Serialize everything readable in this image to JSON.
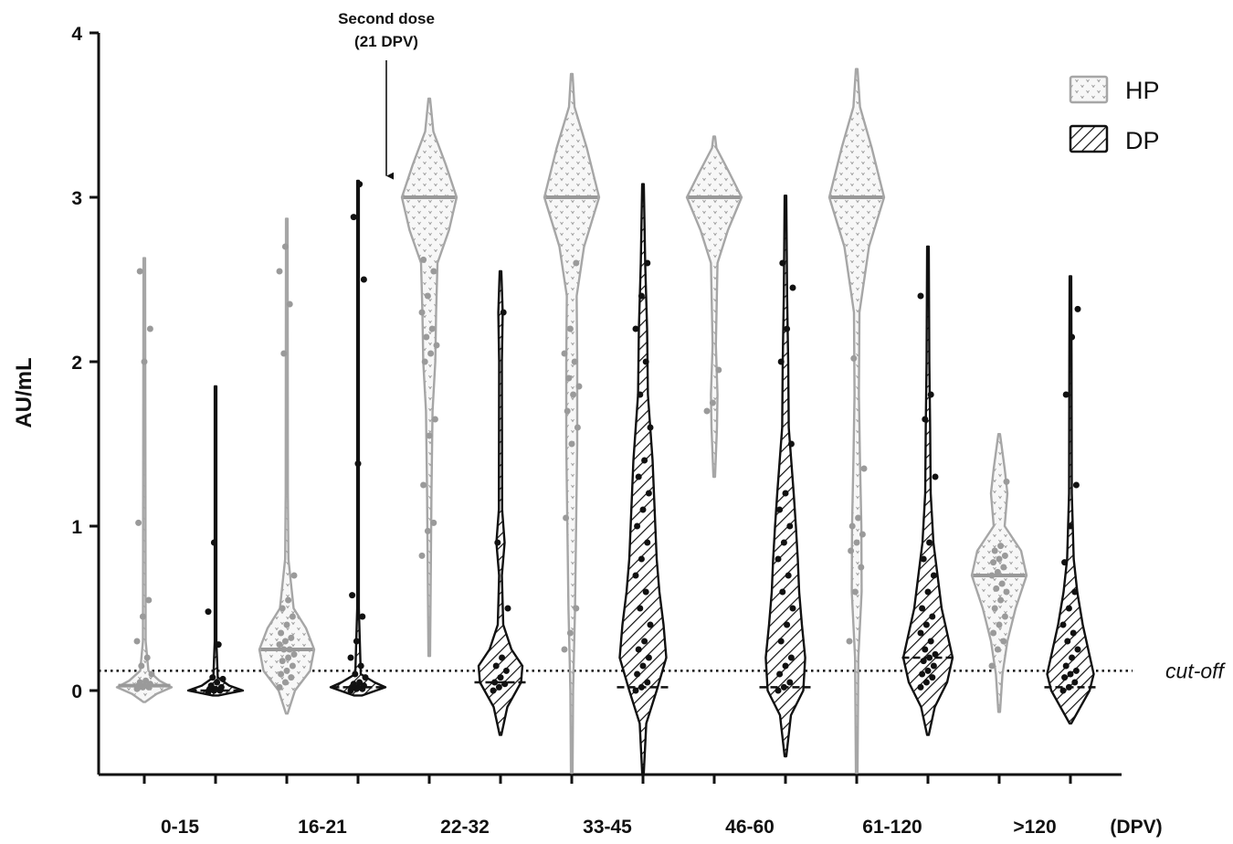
{
  "chart_data": {
    "type": "violin",
    "ylabel": "AU/mL",
    "xunit": "(DPV)",
    "ylim": [
      -0.5,
      4
    ],
    "yticks": [
      0,
      1,
      2,
      3,
      4
    ],
    "categories": [
      "0-15",
      "16-21",
      "22-32",
      "33-45",
      "46-60",
      "61-120",
      ">120"
    ],
    "series": [
      {
        "name": "HP",
        "pattern": "dots",
        "color": "#a6a6a6",
        "violins": [
          {
            "category": "0-15",
            "min": -0.07,
            "max": 2.63,
            "median": 0.03,
            "profile": [
              [
                -0.07,
                0.03
              ],
              [
                -0.02,
                0.45
              ],
              [
                0.02,
                1.0
              ],
              [
                0.06,
                0.55
              ],
              [
                0.12,
                0.15
              ],
              [
                0.3,
                0.05
              ],
              [
                2.63,
                0.02
              ]
            ],
            "points": [
              0.01,
              0.02,
              0.02,
              0.03,
              0.03,
              0.04,
              0.05,
              0.06,
              0.1,
              0.15,
              0.2,
              0.3,
              0.45,
              0.55,
              1.02,
              2.0,
              2.2,
              2.55
            ]
          },
          {
            "category": "16-21",
            "min": -0.14,
            "max": 2.87,
            "median": 0.25,
            "profile": [
              [
                -0.14,
                0.03
              ],
              [
                0.0,
                0.3
              ],
              [
                0.12,
                0.85
              ],
              [
                0.25,
                1.0
              ],
              [
                0.38,
                0.7
              ],
              [
                0.5,
                0.25
              ],
              [
                0.8,
                0.06
              ],
              [
                1.2,
                0.04
              ],
              [
                2.87,
                0.02
              ]
            ],
            "points": [
              0.02,
              0.05,
              0.08,
              0.1,
              0.12,
              0.15,
              0.18,
              0.2,
              0.22,
              0.25,
              0.25,
              0.28,
              0.3,
              0.32,
              0.35,
              0.4,
              0.45,
              0.5,
              0.55,
              0.7,
              2.05,
              2.35,
              2.55,
              2.7
            ]
          },
          {
            "category": "22-32",
            "min": 0.21,
            "max": 3.6,
            "median": 3.0,
            "profile": [
              [
                0.21,
                0.02
              ],
              [
                0.6,
                0.05
              ],
              [
                1.2,
                0.08
              ],
              [
                1.7,
                0.12
              ],
              [
                2.0,
                0.22
              ],
              [
                2.3,
                0.25
              ],
              [
                2.6,
                0.3
              ],
              [
                2.8,
                0.72
              ],
              [
                3.0,
                1.0
              ],
              [
                3.2,
                0.6
              ],
              [
                3.4,
                0.15
              ],
              [
                3.6,
                0.02
              ]
            ],
            "points": [
              0.82,
              0.97,
              1.02,
              1.25,
              1.55,
              1.65,
              2.0,
              2.05,
              2.1,
              2.15,
              2.2,
              2.3,
              2.4,
              2.55,
              2.62
            ]
          },
          {
            "category": "33-45",
            "min": -0.5,
            "max": 3.75,
            "median": 3.0,
            "profile": [
              [
                -0.5,
                0.01
              ],
              [
                0.0,
                0.05
              ],
              [
                0.5,
                0.12
              ],
              [
                1.0,
                0.16
              ],
              [
                1.5,
                0.2
              ],
              [
                2.0,
                0.2
              ],
              [
                2.4,
                0.18
              ],
              [
                2.7,
                0.45
              ],
              [
                3.0,
                1.0
              ],
              [
                3.3,
                0.55
              ],
              [
                3.55,
                0.1
              ],
              [
                3.75,
                0.02
              ]
            ],
            "points": [
              0.25,
              0.35,
              0.5,
              1.05,
              1.5,
              1.6,
              1.7,
              1.8,
              1.85,
              1.9,
              2.0,
              2.05,
              2.2,
              2.6
            ]
          },
          {
            "category": "46-60",
            "min": 1.3,
            "max": 3.37,
            "median": 3.0,
            "profile": [
              [
                1.3,
                0.02
              ],
              [
                1.6,
                0.1
              ],
              [
                1.8,
                0.12
              ],
              [
                2.1,
                0.06
              ],
              [
                2.6,
                0.12
              ],
              [
                2.8,
                0.5
              ],
              [
                3.0,
                1.0
              ],
              [
                3.15,
                0.55
              ],
              [
                3.3,
                0.08
              ],
              [
                3.37,
                0.02
              ]
            ],
            "points": [
              1.7,
              1.75,
              1.95
            ]
          },
          {
            "category": "61-120",
            "min": -0.5,
            "max": 3.78,
            "median": 3.0,
            "profile": [
              [
                -0.5,
                0.01
              ],
              [
                0.2,
                0.06
              ],
              [
                0.6,
                0.18
              ],
              [
                1.0,
                0.17
              ],
              [
                1.4,
                0.12
              ],
              [
                1.8,
                0.08
              ],
              [
                2.3,
                0.1
              ],
              [
                2.7,
                0.45
              ],
              [
                3.0,
                1.0
              ],
              [
                3.3,
                0.55
              ],
              [
                3.55,
                0.12
              ],
              [
                3.78,
                0.02
              ]
            ],
            "points": [
              0.3,
              0.6,
              0.75,
              0.85,
              0.9,
              0.95,
              1.0,
              1.05,
              1.35,
              2.02
            ]
          },
          {
            "category": ">120",
            "min": -0.13,
            "max": 1.56,
            "median": 0.7,
            "profile": [
              [
                -0.13,
                0.03
              ],
              [
                0.1,
                0.12
              ],
              [
                0.3,
                0.3
              ],
              [
                0.5,
                0.6
              ],
              [
                0.7,
                1.0
              ],
              [
                0.85,
                0.8
              ],
              [
                1.0,
                0.2
              ],
              [
                1.2,
                0.3
              ],
              [
                1.35,
                0.2
              ],
              [
                1.56,
                0.03
              ]
            ],
            "points": [
              0.15,
              0.25,
              0.3,
              0.35,
              0.4,
              0.45,
              0.5,
              0.55,
              0.6,
              0.62,
              0.65,
              0.7,
              0.72,
              0.75,
              0.78,
              0.8,
              0.82,
              0.85,
              0.88,
              1.27
            ]
          }
        ]
      },
      {
        "name": "DP",
        "pattern": "hatch",
        "color": "#111111",
        "violins": [
          {
            "category": "0-15",
            "min": -0.03,
            "max": 1.85,
            "median": 0.0,
            "profile": [
              [
                -0.03,
                0.1
              ],
              [
                0.0,
                1.0
              ],
              [
                0.03,
                0.5
              ],
              [
                0.08,
                0.08
              ],
              [
                0.3,
                0.03
              ],
              [
                1.85,
                0.02
              ]
            ],
            "points": [
              -0.01,
              0.0,
              0.0,
              0.01,
              0.01,
              0.02,
              0.03,
              0.05,
              0.07,
              0.08,
              0.28,
              0.48,
              0.9
            ]
          },
          {
            "category": "16-21",
            "min": -0.03,
            "max": 3.1,
            "median": 0.02,
            "profile": [
              [
                -0.03,
                0.15
              ],
              [
                0.02,
                1.0
              ],
              [
                0.05,
                0.6
              ],
              [
                0.1,
                0.1
              ],
              [
                0.5,
                0.03
              ],
              [
                3.1,
                0.02
              ]
            ],
            "points": [
              0.0,
              0.01,
              0.01,
              0.02,
              0.02,
              0.03,
              0.04,
              0.05,
              0.08,
              0.1,
              0.15,
              0.2,
              0.3,
              0.45,
              0.58,
              1.38,
              2.5,
              2.88,
              3.08
            ]
          },
          {
            "category": "22-32",
            "min": -0.27,
            "max": 2.55,
            "median": 0.05,
            "profile": [
              [
                -0.27,
                0.02
              ],
              [
                -0.1,
                0.25
              ],
              [
                0.05,
                0.75
              ],
              [
                0.15,
                0.8
              ],
              [
                0.25,
                0.4
              ],
              [
                0.4,
                0.1
              ],
              [
                0.7,
                0.05
              ],
              [
                0.9,
                0.15
              ],
              [
                1.1,
                0.06
              ],
              [
                2.0,
                0.05
              ],
              [
                2.3,
                0.08
              ],
              [
                2.55,
                0.02
              ]
            ],
            "points": [
              0.0,
              0.02,
              0.04,
              0.05,
              0.08,
              0.12,
              0.15,
              0.2,
              0.5,
              0.9,
              2.3
            ]
          },
          {
            "category": "33-45",
            "min": -0.5,
            "max": 3.08,
            "median": 0.02,
            "profile": [
              [
                -0.5,
                0.02
              ],
              [
                -0.2,
                0.12
              ],
              [
                0.0,
                0.5
              ],
              [
                0.2,
                0.85
              ],
              [
                0.4,
                0.75
              ],
              [
                0.6,
                0.6
              ],
              [
                0.8,
                0.5
              ],
              [
                1.0,
                0.45
              ],
              [
                1.4,
                0.35
              ],
              [
                1.8,
                0.18
              ],
              [
                2.2,
                0.15
              ],
              [
                2.6,
                0.08
              ],
              [
                3.08,
                0.02
              ]
            ],
            "points": [
              0.0,
              0.02,
              0.05,
              0.1,
              0.15,
              0.2,
              0.25,
              0.3,
              0.4,
              0.5,
              0.6,
              0.7,
              0.8,
              0.9,
              1.0,
              1.1,
              1.2,
              1.3,
              1.4,
              1.6,
              1.8,
              2.0,
              2.2,
              2.4,
              2.6
            ]
          },
          {
            "category": "46-60",
            "min": -0.4,
            "max": 3.01,
            "median": 0.02,
            "profile": [
              [
                -0.4,
                0.02
              ],
              [
                -0.15,
                0.2
              ],
              [
                0.0,
                0.65
              ],
              [
                0.2,
                0.72
              ],
              [
                0.4,
                0.6
              ],
              [
                0.6,
                0.5
              ],
              [
                0.8,
                0.45
              ],
              [
                1.0,
                0.38
              ],
              [
                1.2,
                0.3
              ],
              [
                1.6,
                0.12
              ],
              [
                2.0,
                0.1
              ],
              [
                2.4,
                0.06
              ],
              [
                3.01,
                0.02
              ]
            ],
            "points": [
              0.0,
              0.02,
              0.05,
              0.1,
              0.15,
              0.2,
              0.3,
              0.4,
              0.5,
              0.6,
              0.7,
              0.8,
              0.9,
              1.0,
              1.1,
              1.2,
              1.5,
              2.0,
              2.2,
              2.45,
              2.6
            ]
          },
          {
            "category": "61-120",
            "min": -0.27,
            "max": 2.7,
            "median": 0.2,
            "profile": [
              [
                -0.27,
                0.02
              ],
              [
                -0.1,
                0.25
              ],
              [
                0.05,
                0.7
              ],
              [
                0.2,
                0.9
              ],
              [
                0.35,
                0.7
              ],
              [
                0.5,
                0.5
              ],
              [
                0.7,
                0.35
              ],
              [
                0.9,
                0.2
              ],
              [
                1.2,
                0.1
              ],
              [
                1.6,
                0.08
              ],
              [
                2.0,
                0.05
              ],
              [
                2.7,
                0.02
              ]
            ],
            "points": [
              0.02,
              0.05,
              0.08,
              0.1,
              0.12,
              0.15,
              0.18,
              0.2,
              0.22,
              0.25,
              0.3,
              0.35,
              0.4,
              0.45,
              0.5,
              0.6,
              0.7,
              0.8,
              0.9,
              1.3,
              1.65,
              1.8,
              2.4
            ]
          },
          {
            "category": ">120",
            "min": -0.2,
            "max": 2.52,
            "median": 0.02,
            "profile": [
              [
                -0.2,
                0.02
              ],
              [
                0.0,
                0.7
              ],
              [
                0.1,
                0.85
              ],
              [
                0.25,
                0.65
              ],
              [
                0.4,
                0.45
              ],
              [
                0.6,
                0.25
              ],
              [
                0.8,
                0.12
              ],
              [
                1.2,
                0.05
              ],
              [
                2.0,
                0.04
              ],
              [
                2.52,
                0.02
              ]
            ],
            "points": [
              0.0,
              0.02,
              0.05,
              0.08,
              0.1,
              0.12,
              0.15,
              0.2,
              0.25,
              0.3,
              0.35,
              0.4,
              0.5,
              0.6,
              0.78,
              1.0,
              1.25,
              1.8,
              2.15,
              2.32
            ]
          }
        ]
      }
    ],
    "cutoff": {
      "value": 0.12,
      "label": "cut-off"
    },
    "annotation": {
      "line1": "Second dose",
      "line2": "(21 DPV)",
      "x_after_category": "16-21",
      "y_arrow_tip": 3.13
    },
    "legend": {
      "placement": "top-right",
      "entries": [
        "HP",
        "DP"
      ]
    }
  }
}
